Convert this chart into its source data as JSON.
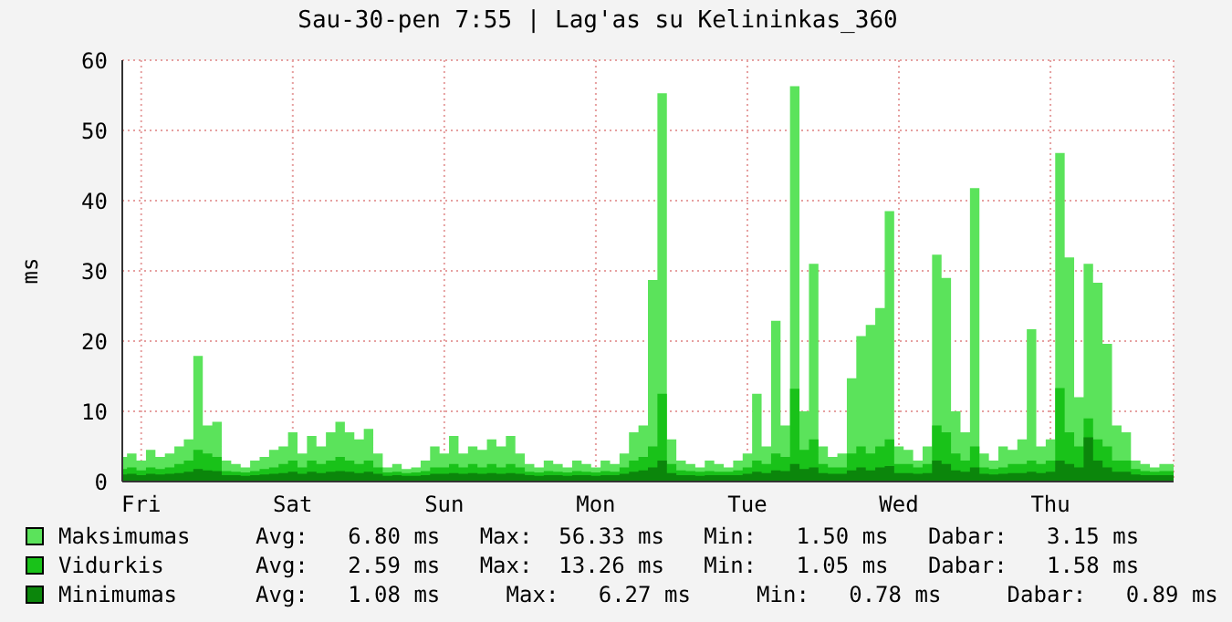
{
  "chart_data": {
    "type": "area",
    "title": "Sau-30-pen 7:55 | Lag'as su Kelininkas_360",
    "ylabel": "ms",
    "categories": [
      null,
      null,
      "Fri",
      null,
      null,
      null,
      null,
      null,
      null,
      null,
      null,
      null,
      null,
      null,
      null,
      null,
      null,
      null,
      "Sat",
      null,
      null,
      null,
      null,
      null,
      null,
      null,
      null,
      null,
      null,
      null,
      null,
      null,
      null,
      null,
      "Sun",
      null,
      null,
      null,
      null,
      null,
      null,
      null,
      null,
      null,
      null,
      null,
      null,
      null,
      null,
      null,
      "Mon",
      null,
      null,
      null,
      null,
      null,
      null,
      null,
      null,
      null,
      null,
      null,
      null,
      null,
      null,
      null,
      "Tue",
      null,
      null,
      null,
      null,
      null,
      null,
      null,
      null,
      null,
      null,
      null,
      null,
      null,
      null,
      null,
      "Wed",
      null,
      null,
      null,
      null,
      null,
      null,
      null,
      null,
      null,
      null,
      null,
      null,
      null,
      null,
      null,
      "Thu",
      null,
      null,
      null,
      null,
      null,
      null,
      null,
      null,
      null,
      null,
      null,
      null,
      null
    ],
    "series": [
      {
        "name": "Maksimumas",
        "color": "#5be35b",
        "values": [
          3.5,
          4,
          3,
          4.5,
          3.5,
          4,
          5,
          6,
          17.9,
          8,
          8.5,
          3,
          2.5,
          2,
          3,
          3.5,
          4.5,
          5,
          7,
          4,
          6.5,
          5,
          7,
          8.5,
          7,
          6,
          7.5,
          4,
          2,
          2.5,
          1.8,
          2,
          3,
          5,
          4,
          6.5,
          4,
          5,
          4.5,
          6,
          5,
          6.5,
          4,
          2.5,
          2,
          3,
          2.5,
          2,
          3,
          2.5,
          2,
          3,
          2.5,
          4,
          7,
          8,
          28.7,
          55.3,
          6,
          3,
          2.5,
          2,
          3,
          2.5,
          2,
          3,
          4,
          12.5,
          5,
          22.9,
          8,
          56.3,
          10,
          31,
          5,
          3.5,
          4,
          14.7,
          20.7,
          22.3,
          24.7,
          38.5,
          5,
          4.5,
          3,
          5,
          32.3,
          29,
          10,
          7,
          41.8,
          4,
          3,
          5,
          4.5,
          6,
          21.7,
          5,
          6,
          46.8,
          31.9,
          12,
          31,
          28.3,
          19.6,
          8,
          7,
          3,
          2.5,
          2,
          2.5,
          2.5
        ]
      },
      {
        "name": "Vidurkis",
        "color": "#19c219",
        "values": [
          1.8,
          2,
          1.6,
          2,
          1.8,
          2,
          2.5,
          3,
          4.5,
          4,
          3.5,
          1.5,
          1.4,
          1.3,
          1.5,
          1.8,
          2,
          2.5,
          3,
          2,
          3,
          2.5,
          3,
          3.5,
          3,
          2.5,
          3,
          2,
          1.3,
          1.4,
          1.2,
          1.3,
          1.5,
          2,
          2,
          2.5,
          2,
          2.5,
          2,
          2.5,
          2,
          2.5,
          2,
          1.4,
          1.3,
          1.5,
          1.4,
          1.3,
          1.5,
          1.4,
          1.3,
          1.5,
          1.4,
          2,
          3,
          3.5,
          5,
          12.5,
          2.5,
          1.6,
          1.5,
          1.4,
          1.5,
          1.4,
          1.4,
          1.6,
          2,
          3,
          2.5,
          4,
          3.5,
          13.2,
          4.5,
          6,
          2.5,
          2,
          2,
          4,
          5,
          4,
          5,
          6,
          2.5,
          2.5,
          2,
          2.5,
          8,
          7,
          4,
          3,
          5,
          2,
          1.8,
          2,
          2.5,
          2.5,
          3,
          2.5,
          3,
          13.3,
          7,
          5,
          9,
          6,
          5,
          3,
          3,
          1.8,
          1.5,
          1.4,
          1.5,
          1.5
        ]
      },
      {
        "name": "Minimumas",
        "color": "#0b860b",
        "values": [
          1,
          1.1,
          0.9,
          1.1,
          1,
          1.1,
          1.2,
          1.4,
          1.8,
          1.6,
          1.5,
          0.9,
          0.9,
          0.8,
          0.9,
          1,
          1.1,
          1.2,
          1.4,
          1.1,
          1.4,
          1.2,
          1.4,
          1.5,
          1.4,
          1.2,
          1.4,
          1.1,
          0.8,
          0.9,
          0.8,
          0.8,
          0.9,
          1.1,
          1.1,
          1.2,
          1.1,
          1.2,
          1.1,
          1.2,
          1.1,
          1.2,
          1.1,
          0.9,
          0.8,
          0.9,
          0.9,
          0.8,
          0.9,
          0.9,
          0.8,
          0.9,
          0.9,
          1.1,
          1.4,
          1.6,
          2,
          3,
          1.2,
          0.9,
          0.9,
          0.8,
          0.9,
          0.9,
          0.9,
          0.9,
          1.1,
          1.4,
          1.2,
          1.6,
          1.5,
          2.5,
          1.8,
          2,
          1.2,
          1.1,
          1.1,
          1.6,
          2,
          1.6,
          2,
          2.2,
          1.2,
          1.2,
          1.1,
          1.2,
          3,
          2.5,
          1.6,
          1.4,
          2,
          1.1,
          1,
          1.1,
          1.2,
          1.2,
          1.4,
          1.2,
          1.4,
          3,
          2.5,
          2,
          6.3,
          3,
          2,
          1.4,
          1.4,
          1,
          0.9,
          0.9,
          0.9,
          0.9
        ]
      }
    ],
    "ylim": [
      0,
      60
    ],
    "yticks": [
      0,
      10,
      20,
      30,
      40,
      50,
      60
    ],
    "grid": true,
    "legend": "bottom",
    "annotations": [
      "Avg:   6.80 ms   Max:  56.33 ms   Min:   1.50 ms   Dabar:   3.15 ms",
      "Avg:   2.59 ms   Max:  13.26 ms   Min:   1.05 ms   Dabar:   1.58 ms",
      "Avg:   1.08 ms     Max:   6.27 ms     Min:   0.78 ms     Dabar:   0.89 ms"
    ]
  }
}
